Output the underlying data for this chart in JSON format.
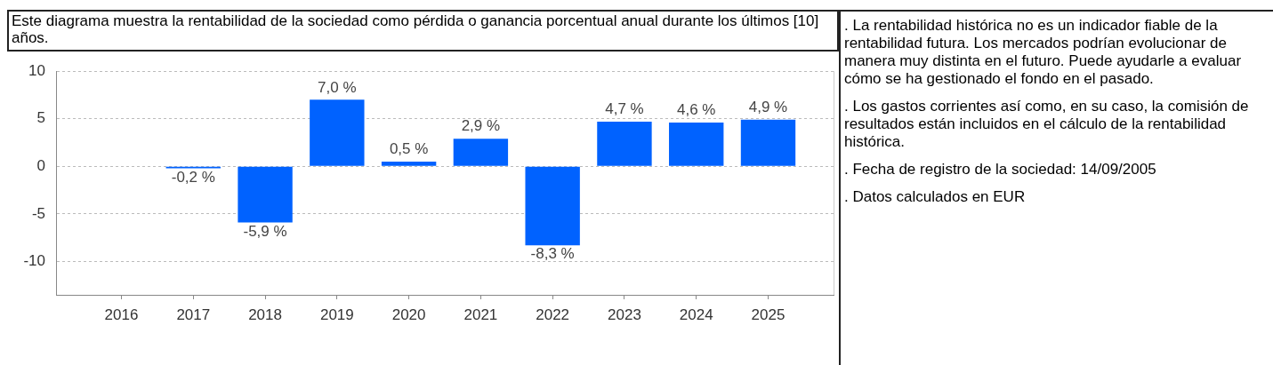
{
  "chart_data": {
    "type": "bar",
    "title": "Este diagrama muestra la rentabilidad de la sociedad como pérdida o ganancia porcentual anual durante los últimos [10] años.",
    "categories": [
      "2016",
      "2017",
      "2018",
      "2019",
      "2020",
      "2021",
      "2022",
      "2023",
      "2024",
      "2025"
    ],
    "values": [
      null,
      -0.2,
      -5.9,
      7.0,
      0.5,
      2.9,
      -8.3,
      4.7,
      4.6,
      4.9
    ],
    "value_labels": [
      null,
      "-0,2 %",
      "-5,9 %",
      "7,0 %",
      "0,5 %",
      "2,9 %",
      "-8,3 %",
      "4,7 %",
      "4,6 %",
      "4,9 %"
    ],
    "color": "#0062ff",
    "ylim": [
      -13.5,
      10
    ],
    "yticks": [
      -10,
      -5,
      0,
      5,
      10
    ],
    "grid": "y",
    "annotations": [
      ". La rentabilidad histórica no es un indicador fiable de la rentabilidad futura. Los mercados podrían evolucionar de manera muy distinta en el futuro. Puede ayudarle a evaluar cómo se ha gestionado el fondo en el pasado.",
      ". Los gastos corrientes así como, en su caso, la comisión de resultados están incluidos en el cálculo de la rentabilidad histórica.",
      ". Fecha de registro de la sociedad: 14/09/2005",
      ". Datos calculados en EUR"
    ]
  }
}
